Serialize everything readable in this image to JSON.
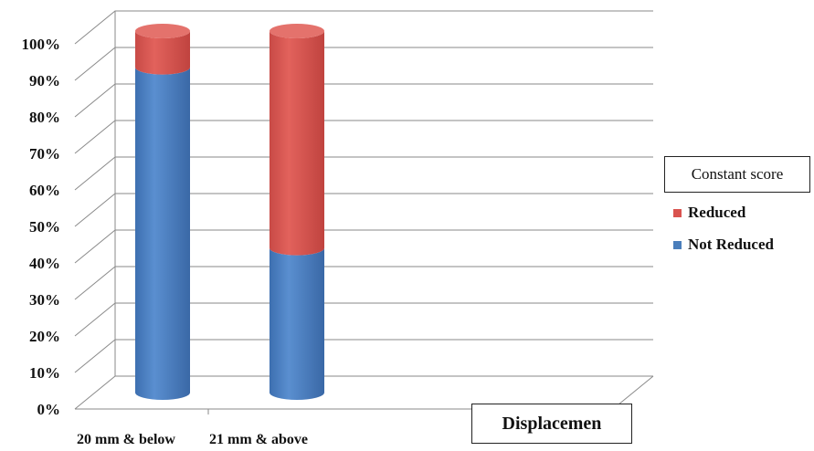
{
  "chart_data": {
    "type": "bar",
    "stacked": true,
    "percent_stacked": true,
    "style": "3d-cylinder",
    "categories": [
      "20 mm & below",
      "21 mm & above"
    ],
    "series": [
      {
        "name": "Not Reduced",
        "values": [
          90,
          40
        ],
        "color": "#4a7ebb"
      },
      {
        "name": "Reduced",
        "values": [
          10,
          60
        ],
        "color": "#d9534f"
      }
    ],
    "yticks": [
      "0%",
      "10%",
      "20%",
      "30%",
      "40%",
      "50%",
      "60%",
      "70%",
      "80%",
      "90%",
      "100%"
    ],
    "ylim": [
      0,
      100
    ],
    "grid": true,
    "legend_title": "Constant score",
    "legend_position": "right",
    "xlabel": "Displacemen",
    "ylabel": ""
  }
}
